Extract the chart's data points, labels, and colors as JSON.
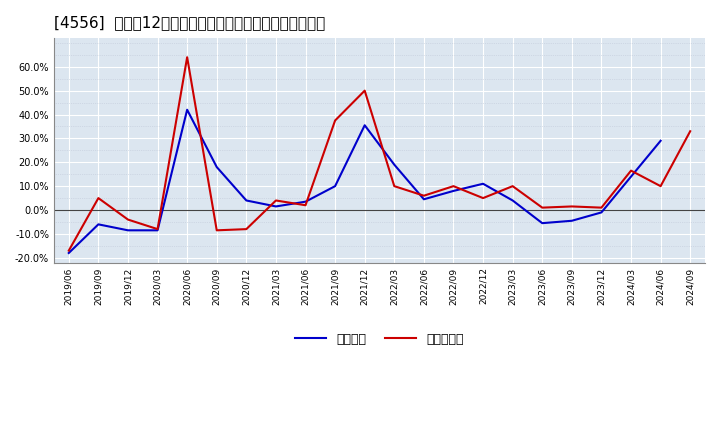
{
  "title": "[4556]  利益だ12か月移動合計の対前年同期増減率の推移",
  "x_labels": [
    "2019/06",
    "2019/09",
    "2019/12",
    "2020/03",
    "2020/06",
    "2020/09",
    "2020/12",
    "2021/03",
    "2021/06",
    "2021/09",
    "2021/12",
    "2022/03",
    "2022/06",
    "2022/09",
    "2022/12",
    "2023/03",
    "2023/06",
    "2023/09",
    "2023/12",
    "2024/03",
    "2024/06",
    "2024/09"
  ],
  "keijo_rieki": [
    -0.18,
    -0.06,
    -0.085,
    -0.085,
    0.42,
    0.18,
    0.04,
    0.015,
    0.035,
    0.1,
    0.355,
    0.19,
    0.045,
    0.08,
    0.11,
    0.04,
    -0.055,
    -0.045,
    -0.01,
    0.14,
    0.29,
    null
  ],
  "touki_jun_rieki": [
    -0.17,
    0.05,
    -0.04,
    -0.08,
    0.64,
    -0.085,
    -0.08,
    0.04,
    0.02,
    0.375,
    0.5,
    0.1,
    0.06,
    0.1,
    0.05,
    0.1,
    0.01,
    0.015,
    0.01,
    0.165,
    0.1,
    0.33
  ],
  "ylim": [
    -0.22,
    0.72
  ],
  "yticks": [
    -0.2,
    -0.1,
    0.0,
    0.1,
    0.2,
    0.3,
    0.4,
    0.5,
    0.6
  ],
  "keijo_color": "#0000cc",
  "touki_color": "#cc0000",
  "legend_keijo": "経常利益",
  "legend_touki": "当期純利益",
  "bg_color": "#ffffff",
  "plot_bg_color": "#dce6f0",
  "grid_color": "#ffffff",
  "minor_grid_color": "#c0c8d8",
  "zero_line_color": "#444444",
  "title_fontsize": 11
}
